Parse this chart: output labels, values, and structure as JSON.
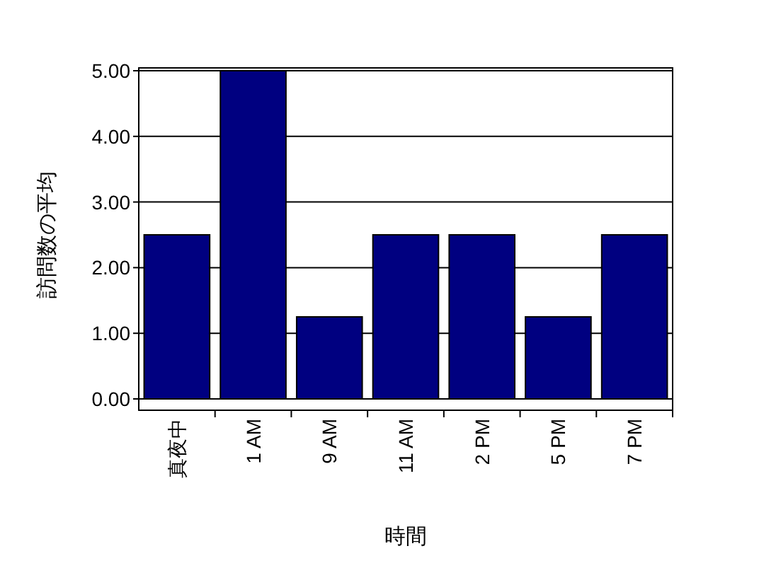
{
  "chart_data": {
    "type": "bar",
    "xlabel": "時間",
    "ylabel": "訪問数の平均",
    "categories": [
      "真夜中",
      "1 AM",
      "9 AM",
      "11 AM",
      "2 PM",
      "5 PM",
      "7 PM"
    ],
    "values": [
      2.5,
      5,
      1.25,
      2.5,
      2.5,
      1.25,
      2.5
    ],
    "color": "#000080",
    "ylim": [
      0,
      5
    ],
    "yticks": [
      {
        "value": 0,
        "label": "0.00"
      },
      {
        "value": 1,
        "label": "1.00"
      },
      {
        "value": 2,
        "label": "2.00"
      },
      {
        "value": 3,
        "label": "3.00"
      },
      {
        "value": 4,
        "label": "4.00"
      },
      {
        "value": 5,
        "label": "5.00"
      }
    ],
    "grid": "y"
  }
}
